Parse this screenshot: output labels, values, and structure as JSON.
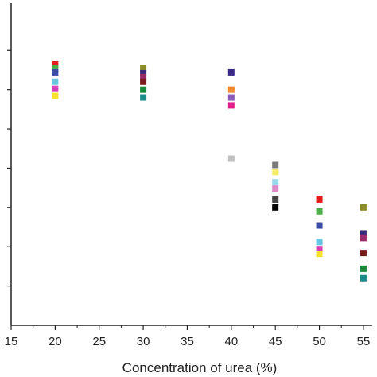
{
  "chart_data": {
    "type": "scatter",
    "title": "",
    "xlabel": "Concentration of urea (%)",
    "ylabel": "",
    "xlim": [
      15,
      56
    ],
    "ylim": [
      0,
      4.1
    ],
    "x_ticks": [
      15,
      20,
      25,
      30,
      35,
      40,
      45,
      50,
      55
    ],
    "x_tick_labels": [
      "15",
      "20",
      "25",
      "30",
      "35",
      "40",
      "45",
      "50",
      "55"
    ],
    "y_ticks": [
      0.5,
      1.0,
      1.5,
      2.0,
      2.5,
      3.0,
      3.5
    ],
    "y_tick_labels": [
      "",
      "",
      "",
      "",
      "",
      "",
      ""
    ],
    "grid": false,
    "legend": "none",
    "points": [
      {
        "x": 20,
        "y": 3.32,
        "color": "#e41a1c"
      },
      {
        "x": 20,
        "y": 3.27,
        "color": "#4daf4a"
      },
      {
        "x": 20,
        "y": 3.22,
        "color": "#3b4ba8"
      },
      {
        "x": 20,
        "y": 3.1,
        "color": "#66c6e0"
      },
      {
        "x": 20,
        "y": 3.01,
        "color": "#d63fb8"
      },
      {
        "x": 20,
        "y": 2.92,
        "color": "#f4e32a"
      },
      {
        "x": 30,
        "y": 3.27,
        "color": "#8c8c2a"
      },
      {
        "x": 30,
        "y": 3.21,
        "color": "#3b2a7a"
      },
      {
        "x": 30,
        "y": 3.16,
        "color": "#9a2a6a"
      },
      {
        "x": 30,
        "y": 3.1,
        "color": "#7a1a1a"
      },
      {
        "x": 30,
        "y": 3.0,
        "color": "#1a8a3a"
      },
      {
        "x": 30,
        "y": 2.9,
        "color": "#1a8a8a"
      },
      {
        "x": 40,
        "y": 3.22,
        "color": "#3b2a8a"
      },
      {
        "x": 40,
        "y": 3.0,
        "color": "#f08a2a"
      },
      {
        "x": 40,
        "y": 2.9,
        "color": "#8a5ab8"
      },
      {
        "x": 40,
        "y": 2.8,
        "color": "#e0208a"
      },
      {
        "x": 40,
        "y": 2.12,
        "color": "#c0c0c0"
      },
      {
        "x": 45,
        "y": 2.04,
        "color": "#7a7a7a"
      },
      {
        "x": 45,
        "y": 1.95,
        "color": "#f4ec6a"
      },
      {
        "x": 45,
        "y": 1.82,
        "color": "#9ad8ec"
      },
      {
        "x": 45,
        "y": 1.74,
        "color": "#e08ac8"
      },
      {
        "x": 45,
        "y": 1.6,
        "color": "#444444"
      },
      {
        "x": 45,
        "y": 1.5,
        "color": "#000000"
      },
      {
        "x": 50,
        "y": 1.6,
        "color": "#e41a1c"
      },
      {
        "x": 50,
        "y": 1.45,
        "color": "#4daf4a"
      },
      {
        "x": 50,
        "y": 1.27,
        "color": "#3b4ba8"
      },
      {
        "x": 50,
        "y": 1.06,
        "color": "#66c6e0"
      },
      {
        "x": 50,
        "y": 0.97,
        "color": "#d63fb8"
      },
      {
        "x": 50,
        "y": 0.91,
        "color": "#f4e32a"
      },
      {
        "x": 55,
        "y": 1.5,
        "color": "#8c8c2a"
      },
      {
        "x": 55,
        "y": 1.17,
        "color": "#3b2a7a"
      },
      {
        "x": 55,
        "y": 1.11,
        "color": "#9a2a6a"
      },
      {
        "x": 55,
        "y": 0.92,
        "color": "#7a1a1a"
      },
      {
        "x": 55,
        "y": 0.72,
        "color": "#1a8a3a"
      },
      {
        "x": 55,
        "y": 0.6,
        "color": "#1a8a8a"
      }
    ]
  }
}
